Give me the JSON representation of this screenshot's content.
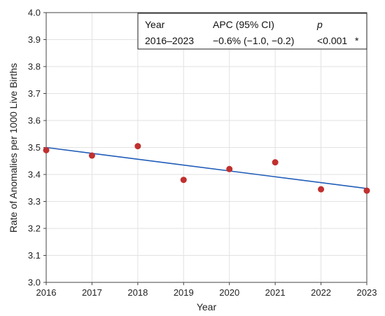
{
  "chart_data": {
    "type": "scatter",
    "title": "",
    "xlabel": "Year",
    "ylabel": "Rate of Anomalies per 1000 Live Births",
    "xlim": [
      2016,
      2023
    ],
    "ylim": [
      3.0,
      4.0
    ],
    "x_ticks": [
      "2016",
      "2017",
      "2018",
      "2019",
      "2020",
      "2021",
      "2022",
      "2023"
    ],
    "y_ticks": [
      "3.0",
      "3.1",
      "3.2",
      "3.3",
      "3.4",
      "3.5",
      "3.6",
      "3.7",
      "3.8",
      "3.9",
      "4.0"
    ],
    "grid": true,
    "points": {
      "x": [
        2016,
        2017,
        2018,
        2019,
        2020,
        2021,
        2022,
        2023
      ],
      "y": [
        3.49,
        3.47,
        3.505,
        3.38,
        3.42,
        3.445,
        3.345,
        3.34
      ],
      "color": "#c0302f"
    },
    "trend_line": {
      "x": [
        2016,
        2023
      ],
      "y": [
        3.5,
        3.348
      ],
      "color": "#1f5cb8"
    },
    "annotation_table": {
      "placement": "top-right",
      "headers": [
        "Year",
        "APC (95% CI)",
        "p"
      ],
      "row": [
        "2016–2023",
        "−0.6% (−1.0, −0.2)",
        "<0.001",
        "*"
      ]
    }
  }
}
